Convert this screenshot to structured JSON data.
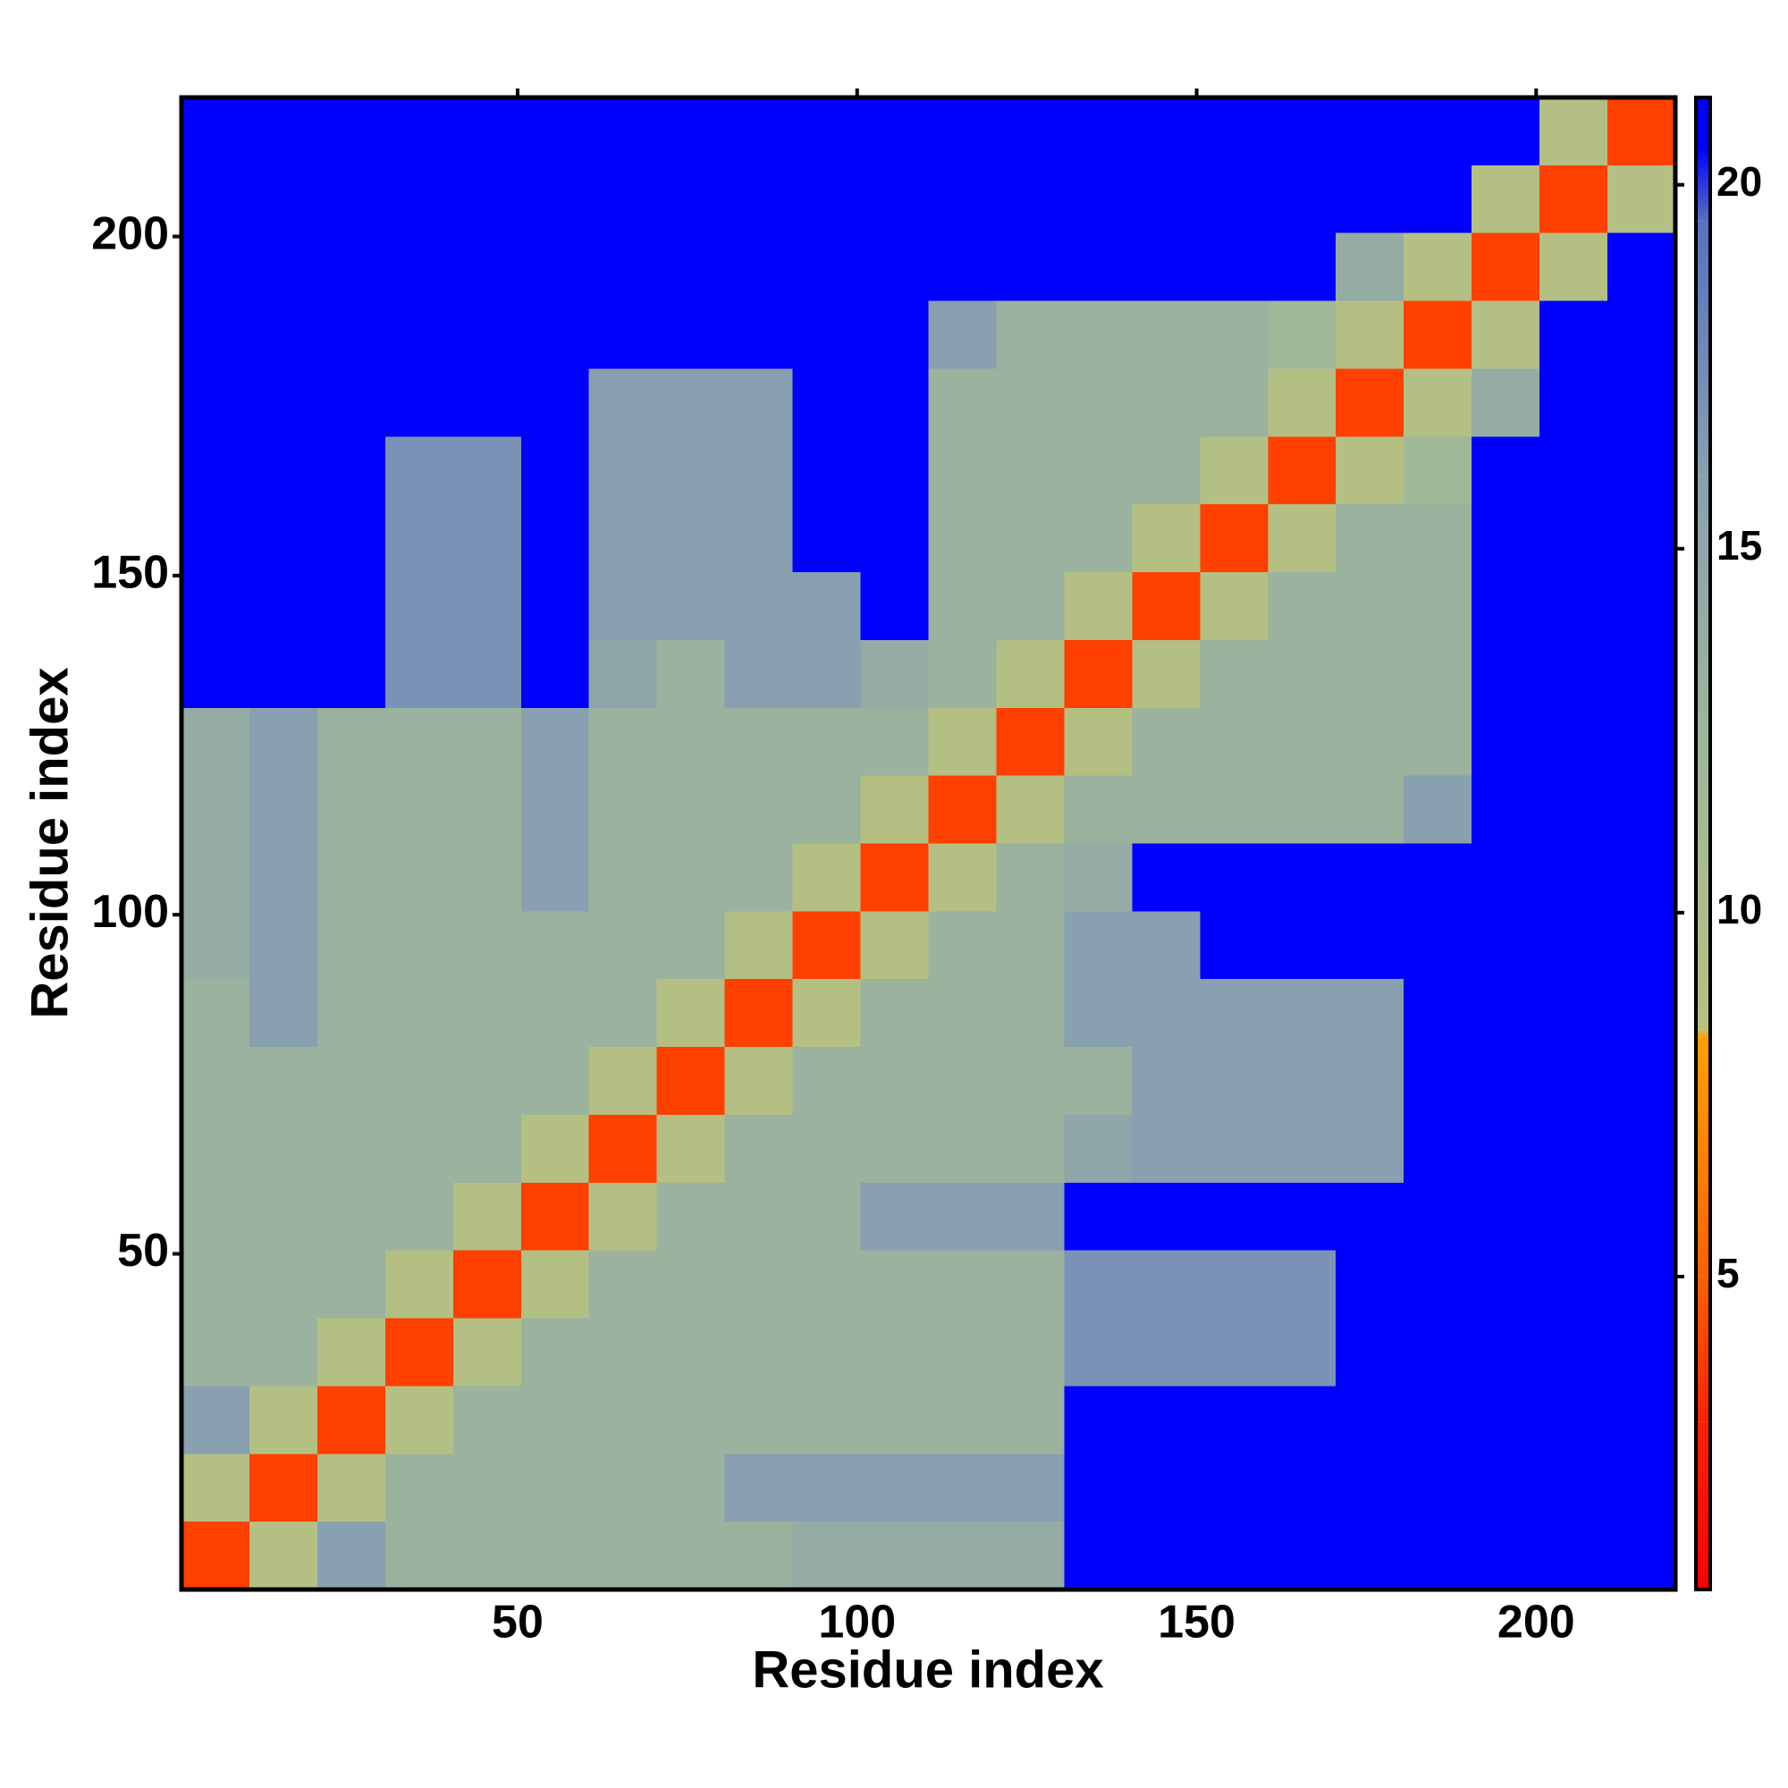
{
  "chart_data": {
    "type": "heatmap",
    "xlabel": "Residue index",
    "ylabel": "Residue index",
    "xlim": [
      0.5,
      220.5
    ],
    "ylim": [
      0.5,
      220.5
    ],
    "xticks": [
      50,
      100,
      150,
      200
    ],
    "yticks": [
      50,
      100,
      150,
      200
    ],
    "x_bins": [
      0.5,
      10.5,
      20.5,
      30.5,
      40.5,
      50.5,
      60.5,
      70.5,
      80.5,
      90.5,
      100.5,
      110.5,
      120.5,
      130.5,
      140.5,
      150.5,
      160.5,
      170.5,
      180.5,
      190.5,
      200.5,
      210.5,
      220.5
    ],
    "y_bins": [
      0.5,
      10.5,
      20.5,
      30.5,
      40.5,
      50.5,
      60.5,
      70.5,
      80.5,
      90.5,
      100.5,
      110.5,
      120.5,
      130.5,
      140.5,
      150.5,
      160.5,
      170.5,
      180.5,
      190.5,
      200.5,
      210.5,
      220.5
    ],
    "z": [
      [
        4,
        9,
        16,
        13,
        13,
        13,
        13,
        13,
        13,
        14,
        14,
        14,
        14,
        21,
        21,
        21,
        21,
        21,
        21,
        21,
        21,
        21
      ],
      [
        9,
        4,
        9,
        13,
        13,
        13,
        13,
        13,
        16,
        16,
        16,
        16,
        16,
        21,
        21,
        21,
        21,
        21,
        21,
        21,
        21,
        21
      ],
      [
        16,
        9,
        4,
        9,
        13,
        13,
        13,
        13,
        13,
        13,
        13,
        13,
        13,
        21,
        21,
        21,
        21,
        21,
        21,
        21,
        21,
        21
      ],
      [
        13,
        13,
        9,
        4,
        9,
        13,
        13,
        13,
        13,
        13,
        13,
        13,
        13,
        17,
        17,
        17,
        17,
        21,
        21,
        21,
        21,
        21
      ],
      [
        13,
        13,
        13,
        9,
        4,
        9,
        13,
        13,
        13,
        13,
        13,
        13,
        13,
        17,
        17,
        17,
        17,
        21,
        21,
        21,
        21,
        21
      ],
      [
        13,
        13,
        13,
        13,
        9,
        4,
        9,
        13,
        13,
        13,
        16,
        16,
        16,
        21,
        21,
        21,
        21,
        21,
        21,
        21,
        21,
        21
      ],
      [
        13,
        13,
        13,
        13,
        13,
        9,
        4,
        9,
        13,
        13,
        13,
        13,
        13,
        15,
        16,
        16,
        16,
        16,
        21,
        21,
        21,
        21
      ],
      [
        13,
        13,
        13,
        13,
        13,
        13,
        9,
        4,
        9,
        13,
        13,
        13,
        13,
        13,
        16,
        16,
        16,
        16,
        21,
        21,
        21,
        21
      ],
      [
        13,
        16,
        13,
        13,
        13,
        13,
        13,
        9,
        4,
        9,
        13,
        13,
        13,
        16,
        16,
        16,
        16,
        16,
        21,
        21,
        21,
        21
      ],
      [
        14,
        16,
        13,
        13,
        13,
        13,
        13,
        13,
        9,
        4,
        9,
        13,
        13,
        16,
        16,
        21,
        21,
        21,
        21,
        21,
        21,
        21
      ],
      [
        14,
        16,
        13,
        13,
        13,
        16,
        13,
        13,
        13,
        9,
        4,
        9,
        13,
        14,
        21,
        21,
        21,
        21,
        21,
        21,
        21,
        21
      ],
      [
        14,
        16,
        13,
        13,
        13,
        16,
        13,
        13,
        13,
        13,
        9,
        4,
        9,
        13,
        13,
        13,
        13,
        13,
        16,
        21,
        21,
        21
      ],
      [
        14,
        16,
        13,
        13,
        13,
        16,
        13,
        13,
        13,
        13,
        13,
        9,
        4,
        9,
        13,
        13,
        13,
        13,
        13,
        21,
        21,
        21
      ],
      [
        21,
        21,
        21,
        17,
        17,
        21,
        15,
        13,
        16,
        16,
        14,
        13,
        9,
        4,
        9,
        13,
        13,
        13,
        13,
        21,
        21,
        21
      ],
      [
        21,
        21,
        21,
        17,
        17,
        21,
        16,
        16,
        16,
        16,
        21,
        13,
        13,
        9,
        4,
        9,
        13,
        13,
        13,
        21,
        21,
        21
      ],
      [
        21,
        21,
        21,
        17,
        17,
        21,
        16,
        16,
        16,
        21,
        21,
        13,
        13,
        13,
        9,
        4,
        9,
        13,
        13,
        21,
        21,
        21
      ],
      [
        21,
        21,
        21,
        17,
        17,
        21,
        16,
        16,
        16,
        21,
        21,
        13,
        13,
        13,
        13,
        9,
        4,
        9,
        12,
        21,
        21,
        21
      ],
      [
        21,
        21,
        21,
        21,
        21,
        21,
        16,
        16,
        16,
        21,
        21,
        13,
        13,
        13,
        13,
        13,
        9,
        4,
        9,
        14,
        21,
        21
      ],
      [
        21,
        21,
        21,
        21,
        21,
        21,
        21,
        21,
        21,
        21,
        21,
        16,
        13,
        13,
        13,
        13,
        12,
        9,
        4,
        9,
        21,
        21
      ],
      [
        21,
        21,
        21,
        21,
        21,
        21,
        21,
        21,
        21,
        21,
        21,
        21,
        21,
        21,
        21,
        21,
        21,
        14,
        9,
        4,
        9,
        21
      ],
      [
        21,
        21,
        21,
        21,
        21,
        21,
        21,
        21,
        21,
        21,
        21,
        21,
        21,
        21,
        21,
        21,
        21,
        21,
        21,
        9,
        4,
        9
      ],
      [
        21,
        21,
        21,
        21,
        21,
        21,
        21,
        21,
        21,
        21,
        21,
        21,
        21,
        21,
        21,
        21,
        21,
        21,
        21,
        21,
        9,
        4
      ]
    ],
    "clim": [
      0.7,
      21.2
    ],
    "cticks": [
      5,
      10,
      15,
      20
    ],
    "colorscale": [
      [
        0.7,
        "#ff0000"
      ],
      [
        3,
        "#ff2000"
      ],
      [
        5,
        "#ff6000"
      ],
      [
        8.3,
        "#ffa000"
      ],
      [
        8.4,
        "#b8c080"
      ],
      [
        12,
        "#a0b898"
      ],
      [
        16,
        "#88a0b0"
      ],
      [
        19.5,
        "#5870c0"
      ],
      [
        20.5,
        "#0000ff"
      ],
      [
        21.2,
        "#0000ff"
      ]
    ]
  }
}
